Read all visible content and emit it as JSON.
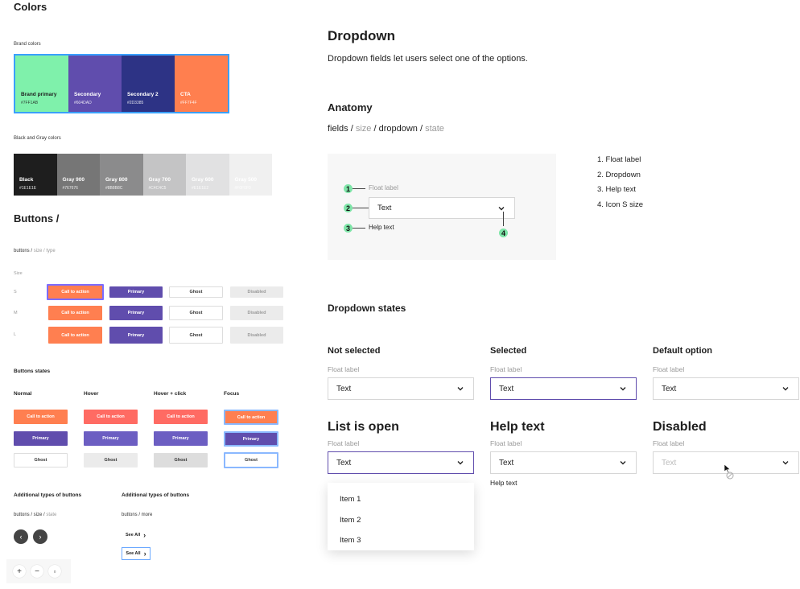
{
  "colors": {
    "title": "Colors",
    "brand_label": "Brand colors",
    "brand": [
      {
        "name": "Brand primary",
        "hex": "#7FF1AB",
        "color": "#7ff1ab",
        "text": "#1e1e1e"
      },
      {
        "name": "Secondary",
        "hex": "#604DAD",
        "color": "#604dad",
        "text": "#ffffff"
      },
      {
        "name": "Secondary 2",
        "hex": "#2D3385",
        "color": "#2d3385",
        "text": "#ffffff"
      },
      {
        "name": "CTA",
        "hex": "#FF7F4F",
        "color": "#ff7f4f",
        "text": "#ffffff"
      }
    ],
    "gray_label": "Black and Gray colors",
    "grays": [
      {
        "name": "Black",
        "hex": "#1E1E1E",
        "color": "#1e1e1e",
        "text": "#ffffff"
      },
      {
        "name": "Gray 900",
        "hex": "#767676",
        "color": "#767676",
        "text": "#ffffff"
      },
      {
        "name": "Gray 800",
        "hex": "#8B8B8C",
        "color": "#8b8b8c",
        "text": "#ffffff"
      },
      {
        "name": "Gray 700",
        "hex": "#C4C4C5",
        "color": "#c4c4c5",
        "text": "#ffffff"
      },
      {
        "name": "Gray 600",
        "hex": "#E1E1E2",
        "color": "#e1e1e2",
        "text": "#ffffff"
      },
      {
        "name": "Gray 500",
        "hex": "#F0F0F0",
        "color": "#f0f0f0",
        "text": "#ffffff"
      }
    ]
  },
  "buttons": {
    "title": "Buttons /",
    "crumb_a": "buttons / ",
    "crumb_b": "size / type",
    "size_label": "Size",
    "sizes": [
      "S",
      "M",
      "L"
    ],
    "cta": "Call to action",
    "primary": "Primary",
    "ghost": "Ghost",
    "disabled": "Disabled",
    "states_title": "Buttons states",
    "states": [
      "Normal",
      "Hover",
      "Hover + click",
      "Focus"
    ],
    "additional_title": "Additional types of buttons",
    "additional_crumb_a": "buttons / size / ",
    "additional_crumb_b": "state",
    "additional_crumb_c": "buttons / more",
    "see_all": "See All"
  },
  "dropdown": {
    "title": "Dropdown",
    "description": "Dropdown fields let users select one of the options.",
    "anatomy_title": "Anatomy",
    "fields_a": "fields / ",
    "fields_b": "size",
    "fields_c": " / dropdown / ",
    "fields_d": "state",
    "anatomy": {
      "float_label": "Float label",
      "text": "Text",
      "help_text": "Help text",
      "n1": "1",
      "n2": "2",
      "n3": "3",
      "n4": "4"
    },
    "anatomy_list": [
      "1. Float label",
      "2. Dropdown",
      "3. Help text",
      "4. Icon S size"
    ],
    "states_title": "Dropdown states",
    "float_label": "Float label",
    "value": "Text",
    "help_text": "Help text",
    "states": {
      "not_selected": "Not selected",
      "selected": "Selected",
      "default_option": "Default option",
      "list_open": "List is open",
      "help": "Help text",
      "disabled": "Disabled"
    },
    "menu_items": [
      "Item 1",
      "Item 2",
      "Item 3"
    ]
  },
  "zoom": {
    "in": "+",
    "out": "−",
    "fit": "▫"
  }
}
